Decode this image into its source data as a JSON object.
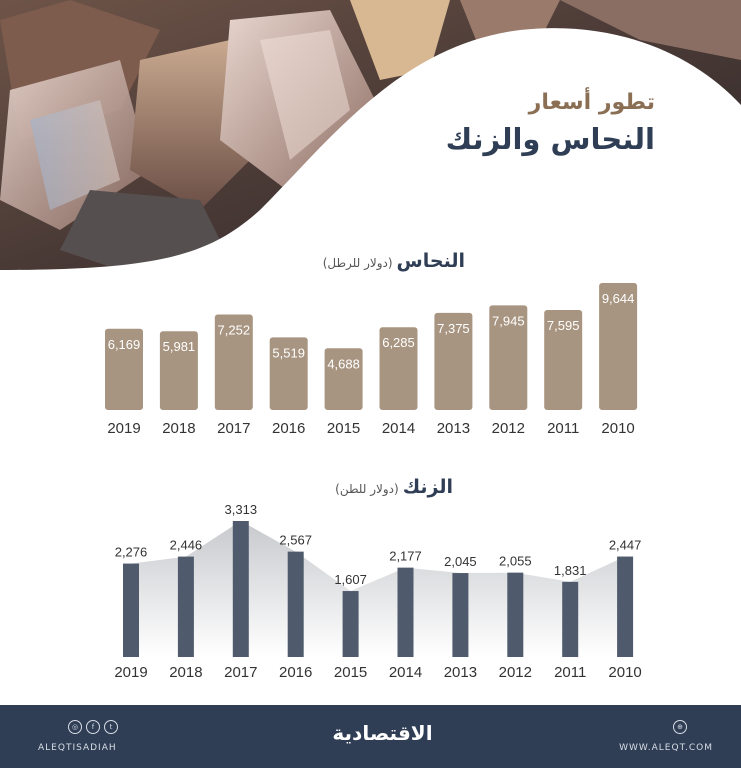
{
  "title": {
    "line1": "تطور أسعار",
    "line2": "النحاس والزنك"
  },
  "copper": {
    "title": "النحاس",
    "unit": "(دولار للرطل)"
  },
  "zinc": {
    "title": "الزنك",
    "unit": "(دولار للطن)"
  },
  "chart_data": [
    {
      "type": "bar",
      "title": "النحاس",
      "ylabel": "(دولار للرطل)",
      "categories": [
        "2019",
        "2018",
        "2017",
        "2016",
        "2015",
        "2014",
        "2013",
        "2012",
        "2011",
        "2010"
      ],
      "values": [
        6169,
        5981,
        7252,
        5519,
        4688,
        6285,
        7375,
        7945,
        7595,
        9644
      ],
      "value_labels": [
        "6,169",
        "5,981",
        "7,252",
        "5,519",
        "4,688",
        "6,285",
        "7,375",
        "7,945",
        "7,595",
        "9,644"
      ],
      "color": "#a89581"
    },
    {
      "type": "bar",
      "title": "الزنك",
      "ylabel": "(دولار للطن)",
      "categories": [
        "2019",
        "2018",
        "2017",
        "2016",
        "2015",
        "2014",
        "2013",
        "2012",
        "2011",
        "2010"
      ],
      "values": [
        2276,
        2446,
        3313,
        2567,
        1607,
        2177,
        2045,
        2055,
        1831,
        2447
      ],
      "value_labels": [
        "2,276",
        "2,446",
        "3,313",
        "2,567",
        "1,607",
        "2,177",
        "2,045",
        "2,055",
        "1,831",
        "2,447"
      ],
      "color": "#4f5b6c"
    }
  ],
  "footer": {
    "handle": "ALEQTISADIAH",
    "logo": "الاقتصادية",
    "website": "WWW.ALEQT.COM",
    "icons": [
      "instagram-icon",
      "facebook-icon",
      "twitter-icon",
      "web-icon"
    ]
  }
}
